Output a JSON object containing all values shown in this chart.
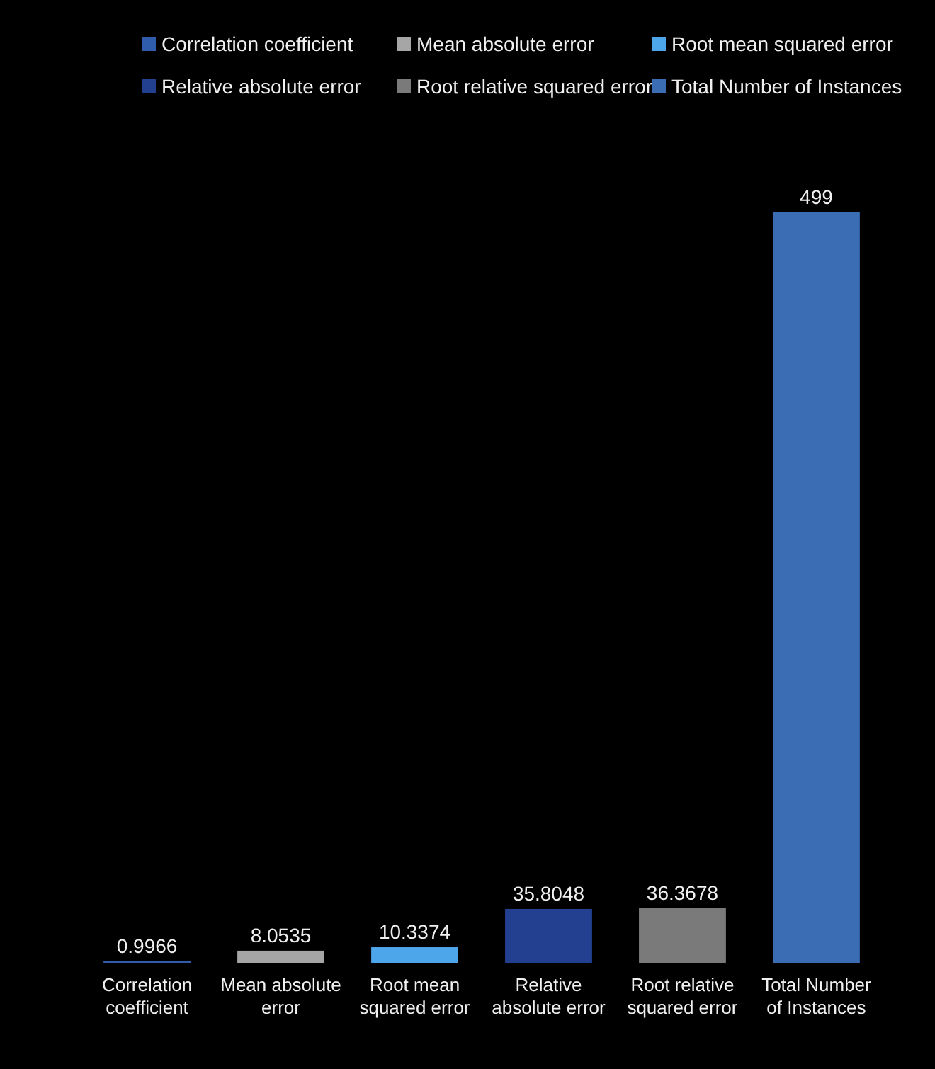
{
  "chart_data": {
    "type": "bar",
    "categories": [
      "Correlation coefficient",
      "Mean absolute error",
      "Root mean squared error",
      "Relative absolute error",
      "Root relative squared error",
      "Total Number of Instances"
    ],
    "series": [
      {
        "name": "Correlation coefficient",
        "color": "#2f5cab",
        "values": [
          0.9966,
          null,
          null,
          null,
          null,
          null
        ]
      },
      {
        "name": "Mean absolute error",
        "color": "#a6a6a6",
        "values": [
          null,
          8.0535,
          null,
          null,
          null,
          null
        ]
      },
      {
        "name": "Root mean squared error",
        "color": "#4ea6ea",
        "values": [
          null,
          null,
          10.3374,
          null,
          null,
          null
        ]
      },
      {
        "name": "Relative absolute error",
        "color": "#22408f",
        "values": [
          null,
          null,
          null,
          35.8048,
          null,
          null
        ]
      },
      {
        "name": "Root relative squared error",
        "color": "#7a7a7a",
        "values": [
          null,
          null,
          null,
          null,
          36.3678,
          null
        ]
      },
      {
        "name": "Total Number of Instances",
        "color": "#3b6db5",
        "values": [
          null,
          null,
          null,
          null,
          null,
          499
        ]
      }
    ],
    "data_labels": true,
    "legend": "top"
  }
}
